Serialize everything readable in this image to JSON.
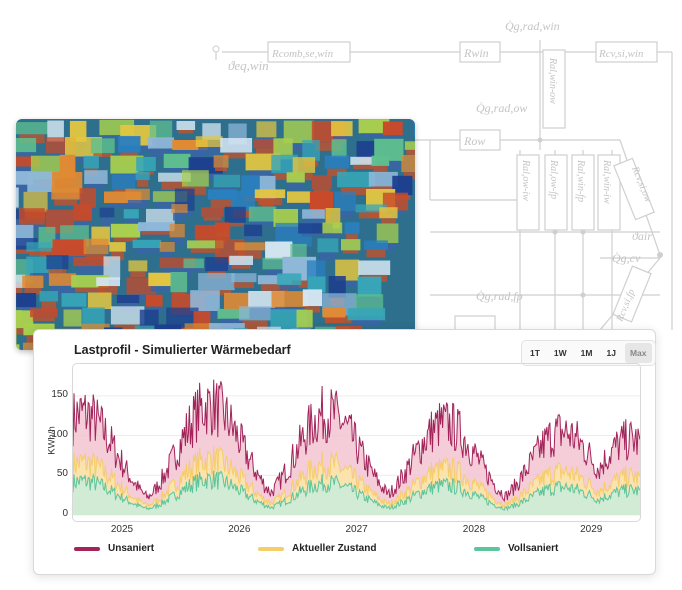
{
  "chart_data": {
    "type": "area",
    "title": "Lastprofil - Simulierter Wärmebedarf",
    "ylabel": "KWh/h",
    "xlabel": "",
    "ylim": [
      0,
      180
    ],
    "yticks": [
      0,
      50,
      100,
      150
    ],
    "x_ticks": [
      "2025",
      "2026",
      "2027",
      "2028",
      "2029"
    ],
    "x_range": [
      "2024-08",
      "2029-06"
    ],
    "grid": true,
    "legend_position": "bottom",
    "series": [
      {
        "name": "Unsaniert",
        "color": "#a3245a",
        "fill": "#f2c4d2",
        "peaks": [
          {
            "date": "2024-09",
            "value": 165
          },
          {
            "date": "2025-10",
            "value": 178
          },
          {
            "date": "2026-10",
            "value": 165
          },
          {
            "date": "2027-10",
            "value": 148
          },
          {
            "date": "2028-10",
            "value": 135
          },
          {
            "date": "2029-05",
            "value": 122
          }
        ],
        "summer_min": 4
      },
      {
        "name": "Aktueller Zustand",
        "color": "#f5cd6a",
        "fill": "#fbe6a8",
        "peaks": [
          {
            "date": "2024-09",
            "value": 85
          },
          {
            "date": "2025-10",
            "value": 90
          },
          {
            "date": "2026-10",
            "value": 82
          },
          {
            "date": "2027-10",
            "value": 75
          },
          {
            "date": "2028-10",
            "value": 70
          },
          {
            "date": "2029-05",
            "value": 62
          }
        ],
        "summer_min": 3
      },
      {
        "name": "Vollsaniert",
        "color": "#5cc59b",
        "fill": "#c9ecdc",
        "peaks": [
          {
            "date": "2024-09",
            "value": 55
          },
          {
            "date": "2025-10",
            "value": 58
          },
          {
            "date": "2026-10",
            "value": 52
          },
          {
            "date": "2027-10",
            "value": 48
          },
          {
            "date": "2028-10",
            "value": 45
          },
          {
            "date": "2029-05",
            "value": 40
          }
        ],
        "summer_min": 2
      }
    ]
  },
  "range_buttons": [
    "1T",
    "1W",
    "1M",
    "1J",
    "Max"
  ],
  "active_range": "Max",
  "schematic": {
    "labels": [
      "ϑeq,win",
      "Rcomb,se,win",
      "Rwin",
      "Rcv,si,win",
      "Q̇g,rad,win",
      "Ral,win-ow",
      "Q̇g,rad,ow",
      "Row",
      "Ral,ow-iw",
      "Ral,ow-fp",
      "Ral,win-fp",
      "Ral,win-iw",
      "Rcv,si,ow",
      "ϑair",
      "Q̇g,cv",
      "Q̇g,rad,fp",
      "Rcv,si,fp"
    ]
  }
}
